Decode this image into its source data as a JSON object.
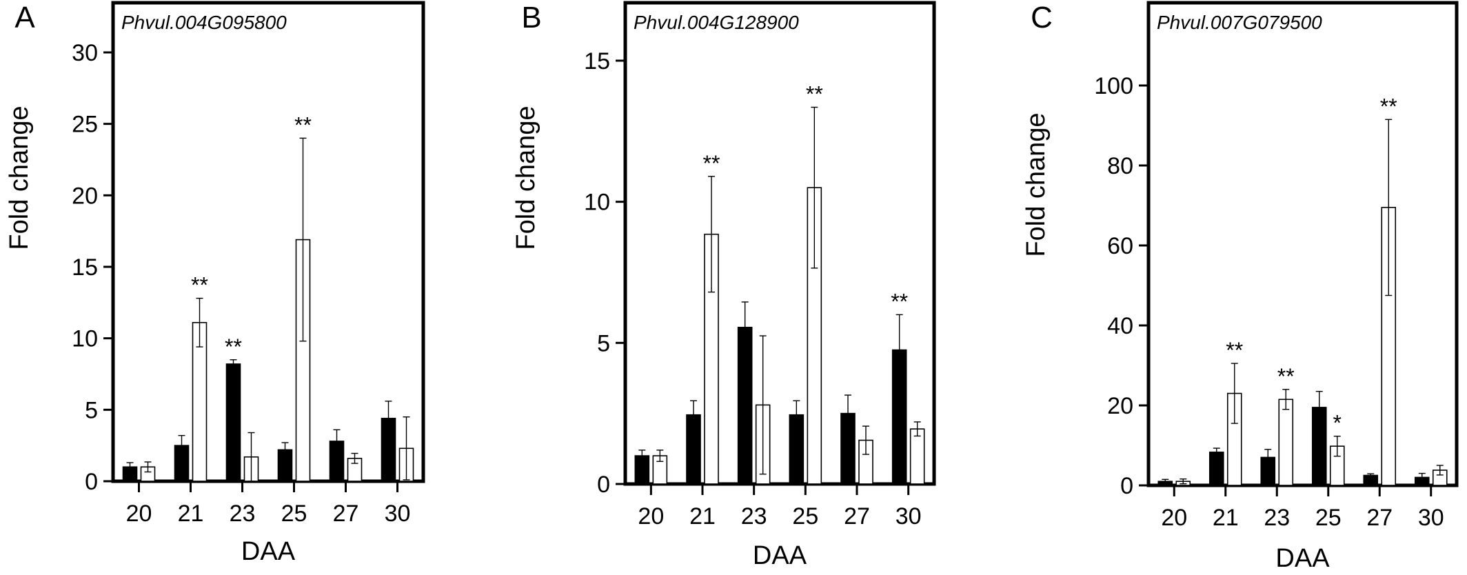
{
  "chart_data": [
    {
      "panel_label": "A",
      "type": "bar",
      "title": "Phvul.004G095800",
      "xlabel": "DAA",
      "ylabel": "Fold change",
      "categories": [
        "20",
        "21",
        "23",
        "25",
        "27",
        "30"
      ],
      "ylim": [
        0,
        34
      ],
      "yticks": [
        0,
        5,
        10,
        15,
        20,
        25,
        30
      ],
      "series": [
        {
          "fill": "#000000",
          "values": [
            1.0,
            2.5,
            8.2,
            2.2,
            2.8,
            4.4
          ],
          "errors": [
            0.3,
            0.7,
            0.3,
            0.5,
            0.8,
            1.2
          ]
        },
        {
          "fill": "#ffffff",
          "values": [
            1.0,
            11.1,
            1.7,
            16.9,
            1.6,
            2.3
          ],
          "errors": [
            0.35,
            1.7,
            1.7,
            7.1,
            0.35,
            2.2
          ]
        }
      ],
      "annotations": [
        {
          "category": "21",
          "series": 1,
          "text": "**"
        },
        {
          "category": "23",
          "series": 0,
          "text": "**"
        },
        {
          "category": "25",
          "series": 1,
          "text": "**"
        }
      ],
      "grid": false,
      "legend": "none"
    },
    {
      "panel_label": "B",
      "type": "bar",
      "title": "Phvul.004G128900",
      "xlabel": "DAA",
      "ylabel": "Fold change",
      "categories": [
        "20",
        "21",
        "23",
        "25",
        "27",
        "30"
      ],
      "ylim": [
        0,
        16.5
      ],
      "yticks": [
        0,
        5,
        10,
        15
      ],
      "series": [
        {
          "fill": "#000000",
          "values": [
            1.0,
            2.45,
            5.55,
            2.45,
            2.5,
            4.75
          ],
          "errors": [
            0.2,
            0.5,
            0.9,
            0.5,
            0.65,
            1.25
          ]
        },
        {
          "fill": "#ffffff",
          "values": [
            1.0,
            8.85,
            2.8,
            10.5,
            1.55,
            1.95
          ],
          "errors": [
            0.2,
            2.05,
            2.45,
            2.85,
            0.5,
            0.25
          ]
        }
      ],
      "annotations": [
        {
          "category": "21",
          "series": 1,
          "text": "**"
        },
        {
          "category": "25",
          "series": 1,
          "text": "**"
        },
        {
          "category": "30",
          "series": 0,
          "text": "**"
        }
      ],
      "grid": false,
      "legend": "none"
    },
    {
      "panel_label": "C",
      "type": "bar",
      "title": "Phvul.007G079500",
      "xlabel": "DAA",
      "ylabel": "Fold change",
      "categories": [
        "20",
        "21",
        "23",
        "25",
        "27",
        "30"
      ],
      "ylim": [
        0,
        120
      ],
      "yticks": [
        0,
        20,
        40,
        60,
        80,
        100
      ],
      "series": [
        {
          "fill": "#000000",
          "values": [
            1.0,
            8.3,
            7.0,
            19.5,
            2.5,
            2.0
          ],
          "errors": [
            0.5,
            1.0,
            2.0,
            4.0,
            0.4,
            1.0
          ]
        },
        {
          "fill": "#ffffff",
          "values": [
            1.0,
            23.0,
            21.5,
            9.8,
            69.5,
            3.8
          ],
          "errors": [
            0.6,
            7.5,
            2.5,
            2.5,
            22.0,
            1.2
          ]
        }
      ],
      "annotations": [
        {
          "category": "21",
          "series": 1,
          "text": "**"
        },
        {
          "category": "23",
          "series": 1,
          "text": "**"
        },
        {
          "category": "25",
          "series": 1,
          "text": "*"
        },
        {
          "category": "27",
          "series": 1,
          "text": "**"
        }
      ],
      "grid": false,
      "legend": "none"
    }
  ]
}
